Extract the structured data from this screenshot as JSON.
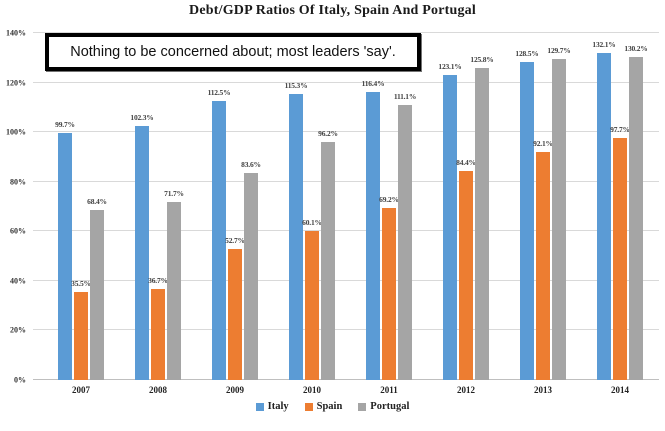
{
  "annotation": "Nothing to be concerned about; most leaders 'say'.",
  "chart_data": {
    "type": "bar",
    "title": "Debt/GDP Ratios Of Italy, Spain And Portugal",
    "categories": [
      "2007",
      "2008",
      "2009",
      "2010",
      "2011",
      "2012",
      "2013",
      "2014"
    ],
    "series": [
      {
        "name": "Italy",
        "color": "#5B9BD5",
        "values": [
          99.7,
          102.3,
          112.5,
          115.3,
          116.4,
          123.1,
          128.5,
          132.1
        ]
      },
      {
        "name": "Spain",
        "color": "#ED7D31",
        "values": [
          35.5,
          36.7,
          52.7,
          60.1,
          69.2,
          84.4,
          92.1,
          97.7
        ]
      },
      {
        "name": "Portugal",
        "color": "#A5A5A5",
        "values": [
          68.4,
          71.7,
          83.6,
          96.2,
          111.1,
          125.8,
          129.7,
          130.2
        ]
      }
    ],
    "xlabel": "",
    "ylabel": "",
    "ylim": [
      0,
      140
    ],
    "ytick_step": 20,
    "ytick_labels": [
      "0%",
      "20%",
      "40%",
      "60%",
      "80%",
      "100%",
      "120%",
      "140%"
    ],
    "value_label_suffix": "%",
    "grid": true,
    "legend_position": "bottom"
  }
}
